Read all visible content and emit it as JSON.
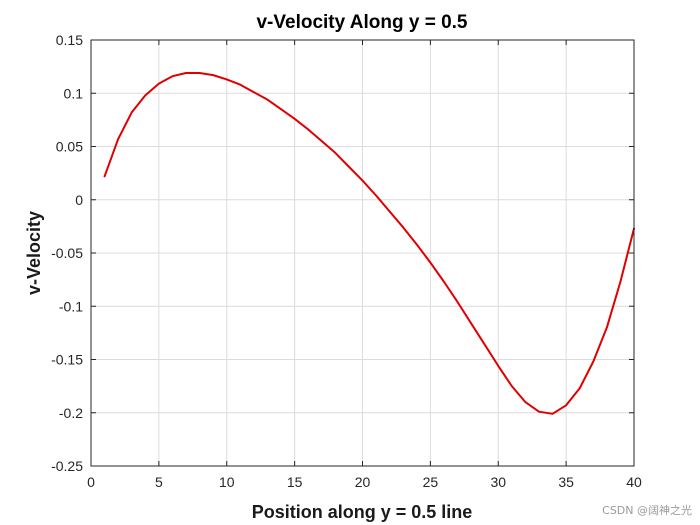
{
  "chart_data": {
    "type": "line",
    "title": "v-Velocity Along y = 0.5",
    "xlabel": "Position along y = 0.5 line",
    "ylabel": "v-Velocity",
    "xlim": [
      0,
      40
    ],
    "ylim": [
      -0.25,
      0.15
    ],
    "xticks": [
      0,
      5,
      10,
      15,
      20,
      25,
      30,
      35,
      40
    ],
    "yticks": [
      -0.25,
      -0.2,
      -0.15,
      -0.1,
      -0.05,
      0,
      0.05,
      0.1,
      0.15
    ],
    "xtick_labels": [
      "0",
      "5",
      "10",
      "15",
      "20",
      "25",
      "30",
      "35",
      "40"
    ],
    "ytick_labels": [
      "-0.25",
      "-0.2",
      "-0.15",
      "-0.1",
      "-0.05",
      "0",
      "0.05",
      "0.1",
      "0.15"
    ],
    "grid": true,
    "series": [
      {
        "name": "v-velocity",
        "color": "#e00000",
        "x": [
          1,
          2,
          3,
          4,
          5,
          6,
          7,
          8,
          9,
          10,
          11,
          12,
          13,
          14,
          15,
          16,
          17,
          18,
          19,
          20,
          21,
          22,
          23,
          24,
          25,
          26,
          27,
          28,
          29,
          30,
          31,
          32,
          33,
          34,
          35,
          36,
          37,
          38,
          39,
          40
        ],
        "values": [
          0.022,
          0.057,
          0.082,
          0.098,
          0.109,
          0.116,
          0.119,
          0.119,
          0.117,
          0.113,
          0.108,
          0.101,
          0.094,
          0.085,
          0.076,
          0.066,
          0.055,
          0.044,
          0.031,
          0.018,
          0.004,
          -0.011,
          -0.026,
          -0.042,
          -0.059,
          -0.077,
          -0.096,
          -0.116,
          -0.136,
          -0.156,
          -0.175,
          -0.19,
          -0.199,
          -0.201,
          -0.193,
          -0.177,
          -0.152,
          -0.12,
          -0.077,
          -0.027
        ]
      }
    ]
  },
  "watermark": "CSDN @阔神之光"
}
